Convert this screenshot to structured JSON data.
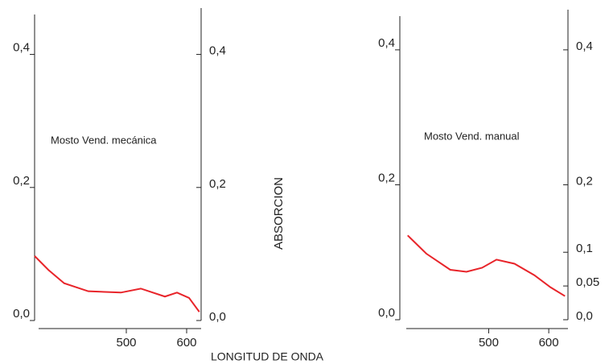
{
  "axis_labels": {
    "y": "ABSORCION",
    "x": "LONGITUD DE ONDA"
  },
  "chart_data": [
    {
      "type": "line",
      "annotation": "Mosto Vend. mecánica",
      "x": [
        348,
        371,
        397,
        437,
        491,
        524,
        564,
        584,
        604,
        621
      ],
      "series": [
        {
          "color": "#e8242a",
          "values": [
            0.097,
            0.076,
            0.056,
            0.044,
            0.042,
            0.048,
            0.036,
            0.042,
            0.034,
            0.013
          ]
        }
      ],
      "xlim": [
        348,
        624
      ],
      "xticks": [
        500,
        600
      ],
      "ylim": [
        0,
        0.46
      ],
      "yticks": [
        {
          "value": 0,
          "label": "0,0"
        },
        {
          "value": 0.2,
          "label": "0,2"
        },
        {
          "value": 0.4,
          "label": "0,4"
        }
      ],
      "y2lim": [
        0,
        0.46
      ],
      "y2ticks": [
        {
          "value": 0,
          "label": "0,0"
        },
        {
          "value": 0.2,
          "label": "0,2"
        },
        {
          "value": 0.4,
          "label": "0,4"
        }
      ]
    },
    {
      "type": "line",
      "annotation": "Mosto Vend. manual",
      "x": [
        365,
        396,
        436,
        463,
        489,
        513,
        543,
        576,
        603,
        627
      ],
      "series": [
        {
          "color": "#e8242a",
          "values": [
            0.125,
            0.098,
            0.074,
            0.071,
            0.077,
            0.089,
            0.083,
            0.066,
            0.048,
            0.035
          ]
        }
      ],
      "xlim": [
        352,
        632
      ],
      "xticks": [
        500,
        600
      ],
      "ylim": [
        0,
        0.45
      ],
      "yticks": [
        {
          "value": 0,
          "label": "0,0"
        },
        {
          "value": 0.2,
          "label": "0,2"
        },
        {
          "value": 0.4,
          "label": "0,4"
        }
      ],
      "y2lim": [
        0,
        0.45
      ],
      "y2ticks": [
        {
          "value": 0,
          "label": "0,0"
        },
        {
          "value": 0.05,
          "label": "0,05"
        },
        {
          "value": 0.1,
          "label": "0,1"
        },
        {
          "value": 0.2,
          "label": "0,2"
        },
        {
          "value": 0.4,
          "label": "0,4"
        }
      ]
    }
  ]
}
